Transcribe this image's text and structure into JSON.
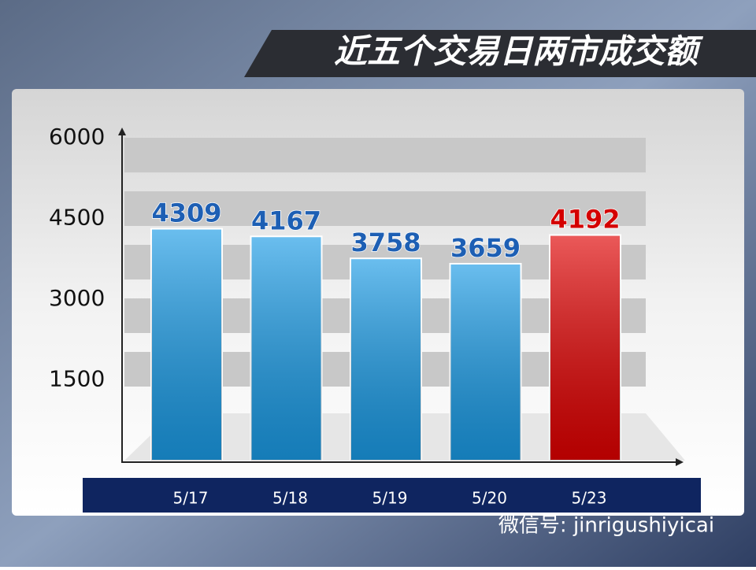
{
  "chart_data": {
    "type": "bar",
    "title": "近五个交易日两市成交额",
    "categories": [
      "5/17",
      "5/18",
      "5/19",
      "5/20",
      "5/23"
    ],
    "values": [
      4309,
      4167,
      3758,
      3659,
      4192
    ],
    "colors": [
      "#1a9be6",
      "#1a9be6",
      "#1a9be6",
      "#1a9be6",
      "#e00000"
    ],
    "label_colors": [
      "#1d5fb4",
      "#1d5fb4",
      "#1d5fb4",
      "#1d5fb4",
      "#d40000"
    ],
    "ylim": [
      0,
      6000
    ],
    "yticks": [
      1500,
      3000,
      4500,
      6000
    ],
    "watermark": "微信号: jinrigushiyicai"
  }
}
